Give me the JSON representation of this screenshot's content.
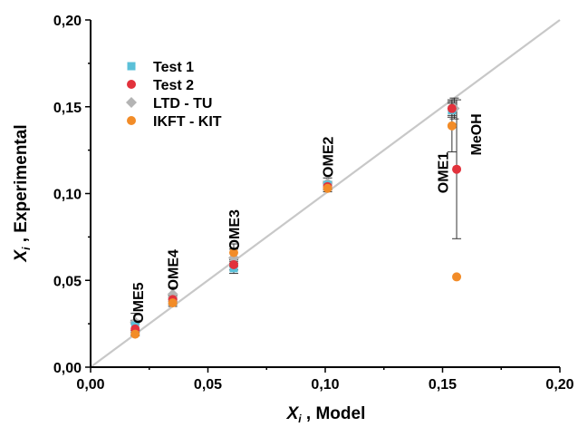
{
  "chart_data": {
    "type": "scatter",
    "xlabel_main": "X",
    "xlabel_sub": "i",
    "xlabel_rest": " , Model",
    "ylabel_main": "X",
    "ylabel_sub": "i",
    "ylabel_rest": " , Experimental",
    "xlim": [
      0.0,
      0.2
    ],
    "ylim": [
      0.0,
      0.2
    ],
    "xticks": [
      {
        "value": 0.0,
        "label": "0,00"
      },
      {
        "value": 0.05,
        "label": "0,05"
      },
      {
        "value": 0.1,
        "label": "0,10"
      },
      {
        "value": 0.15,
        "label": "0,15"
      },
      {
        "value": 0.2,
        "label": "0,20"
      }
    ],
    "yticks": [
      {
        "value": 0.0,
        "label": "0,00"
      },
      {
        "value": 0.05,
        "label": "0,05"
      },
      {
        "value": 0.1,
        "label": "0,10"
      },
      {
        "value": 0.15,
        "label": "0,15"
      },
      {
        "value": 0.2,
        "label": "0,20"
      }
    ],
    "diagonal": [
      [
        0,
        0
      ],
      [
        0.2,
        0.2
      ]
    ],
    "legend_position": "top-left",
    "series": [
      {
        "name": "Test 1",
        "marker": "square",
        "color": "#5bc0d8",
        "points": [
          {
            "x": 0.019,
            "y": 0.024,
            "err": 0.003
          },
          {
            "x": 0.035,
            "y": 0.038,
            "err": 0.002
          },
          {
            "x": 0.061,
            "y": 0.057,
            "err": 0.003
          },
          {
            "x": 0.101,
            "y": 0.105,
            "err": 0.002
          },
          {
            "x": 0.154,
            "y": 0.148,
            "err": 0.004
          }
        ]
      },
      {
        "name": "Test 2",
        "marker": "circle",
        "color": "#e2323c",
        "points": [
          {
            "x": 0.019,
            "y": 0.022,
            "err": 0.003
          },
          {
            "x": 0.035,
            "y": 0.039,
            "err": 0.002
          },
          {
            "x": 0.061,
            "y": 0.059,
            "err": 0.003
          },
          {
            "x": 0.101,
            "y": 0.104,
            "err": 0.002
          },
          {
            "x": 0.154,
            "y": 0.149,
            "err": 0.004
          },
          {
            "x": 0.156,
            "y": 0.114,
            "err": 0.04
          }
        ]
      },
      {
        "name": "LTD - TU",
        "marker": "diamond",
        "color": "#b4b4b4",
        "points": [
          {
            "x": 0.019,
            "y": 0.026,
            "err": 0.005
          },
          {
            "x": 0.035,
            "y": 0.042,
            "err": 0.004
          },
          {
            "x": 0.061,
            "y": 0.063,
            "err": 0.005
          },
          {
            "x": 0.101,
            "y": 0.106,
            "err": 0.003
          },
          {
            "x": 0.155,
            "y": 0.149,
            "err": 0.006
          }
        ]
      },
      {
        "name": "IKFT - KIT",
        "marker": "circle",
        "color": "#f28c28",
        "points": [
          {
            "x": 0.019,
            "y": 0.019,
            "err": 0.001
          },
          {
            "x": 0.035,
            "y": 0.037,
            "err": 0.002
          },
          {
            "x": 0.061,
            "y": 0.066,
            "err": 0.005
          },
          {
            "x": 0.101,
            "y": 0.103,
            "err": 0.002
          },
          {
            "x": 0.154,
            "y": 0.139,
            "err": 0.015
          },
          {
            "x": 0.156,
            "y": 0.052,
            "err": 0.0
          }
        ]
      }
    ],
    "annotations": [
      {
        "text": "OME5",
        "x": 0.02,
        "y": 0.037
      },
      {
        "text": "OME4",
        "x": 0.035,
        "y": 0.056
      },
      {
        "text": "OME3",
        "x": 0.061,
        "y": 0.079
      },
      {
        "text": "OME2",
        "x": 0.101,
        "y": 0.121
      },
      {
        "text": "OME1",
        "x": 0.15,
        "y": 0.112
      },
      {
        "text": "MeOH",
        "x": 0.164,
        "y": 0.134
      }
    ]
  }
}
